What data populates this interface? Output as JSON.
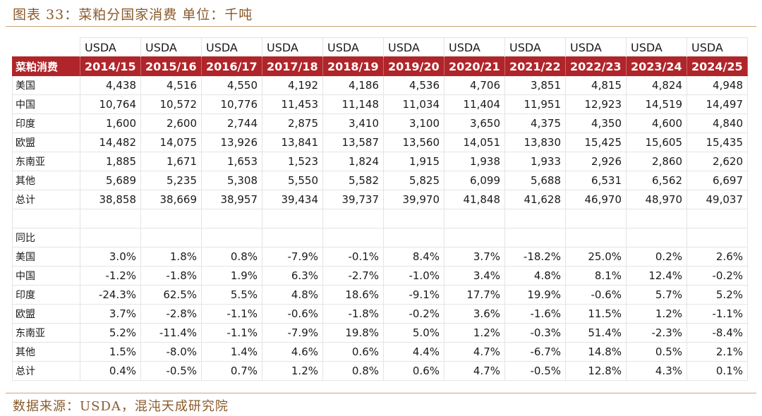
{
  "title": "图表 33：菜粕分国家消费 单位：千吨",
  "source": "数据来源：USDA，混沌天成研究院",
  "table": {
    "source_label": "USDA",
    "header_label": "菜粕消费",
    "years": [
      "2014/15",
      "2015/16",
      "2016/17",
      "2017/18",
      "2018/19",
      "2019/20",
      "2020/21",
      "2021/22",
      "2022/23",
      "2023/24",
      "2024/25"
    ],
    "consumption": [
      {
        "label": "美国",
        "values": [
          "4,438",
          "4,516",
          "4,550",
          "4,192",
          "4,186",
          "4,536",
          "4,706",
          "3,851",
          "4,815",
          "4,824",
          "4,948"
        ]
      },
      {
        "label": "中国",
        "values": [
          "10,764",
          "10,572",
          "10,776",
          "11,453",
          "11,148",
          "11,034",
          "11,404",
          "11,951",
          "12,923",
          "14,519",
          "14,497"
        ]
      },
      {
        "label": "印度",
        "values": [
          "1,600",
          "2,600",
          "2,744",
          "2,875",
          "3,410",
          "3,100",
          "3,650",
          "4,375",
          "4,350",
          "4,600",
          "4,840"
        ]
      },
      {
        "label": "欧盟",
        "values": [
          "14,482",
          "14,075",
          "13,926",
          "13,841",
          "13,587",
          "13,560",
          "14,051",
          "13,830",
          "15,425",
          "15,605",
          "15,435"
        ]
      },
      {
        "label": "东南亚",
        "values": [
          "1,885",
          "1,671",
          "1,653",
          "1,523",
          "1,824",
          "1,915",
          "1,938",
          "1,933",
          "2,926",
          "2,860",
          "2,620"
        ]
      },
      {
        "label": "其他",
        "values": [
          "5,689",
          "5,235",
          "5,308",
          "5,550",
          "5,582",
          "5,825",
          "6,099",
          "5,688",
          "6,531",
          "6,562",
          "6,697"
        ]
      },
      {
        "label": "总计",
        "values": [
          "38,858",
          "38,669",
          "38,957",
          "39,434",
          "39,737",
          "39,970",
          "41,848",
          "41,628",
          "46,970",
          "48,970",
          "49,037"
        ]
      }
    ],
    "yoy_label": "同比",
    "yoy": [
      {
        "label": "美国",
        "values": [
          "3.0%",
          "1.8%",
          "0.8%",
          "-7.9%",
          "-0.1%",
          "8.4%",
          "3.7%",
          "-18.2%",
          "25.0%",
          "0.2%",
          "2.6%"
        ]
      },
      {
        "label": "中国",
        "values": [
          "-1.2%",
          "-1.8%",
          "1.9%",
          "6.3%",
          "-2.7%",
          "-1.0%",
          "3.4%",
          "4.8%",
          "8.1%",
          "12.4%",
          "-0.2%"
        ]
      },
      {
        "label": "印度",
        "values": [
          "-24.3%",
          "62.5%",
          "5.5%",
          "4.8%",
          "18.6%",
          "-9.1%",
          "17.7%",
          "19.9%",
          "-0.6%",
          "5.7%",
          "5.2%"
        ]
      },
      {
        "label": "欧盟",
        "values": [
          "3.7%",
          "-2.8%",
          "-1.1%",
          "-0.6%",
          "-1.8%",
          "-0.2%",
          "3.6%",
          "-1.6%",
          "11.5%",
          "1.2%",
          "-1.1%"
        ]
      },
      {
        "label": "东南亚",
        "values": [
          "5.2%",
          "-11.4%",
          "-1.1%",
          "-7.9%",
          "19.8%",
          "5.0%",
          "1.2%",
          "-0.3%",
          "51.4%",
          "-2.3%",
          "-8.4%"
        ]
      },
      {
        "label": "其他",
        "values": [
          "1.5%",
          "-8.0%",
          "1.4%",
          "4.6%",
          "0.6%",
          "4.4%",
          "4.7%",
          "-6.7%",
          "14.8%",
          "0.5%",
          "2.1%"
        ]
      },
      {
        "label": "总计",
        "values": [
          "0.4%",
          "-0.5%",
          "0.7%",
          "1.2%",
          "0.8%",
          "0.6%",
          "4.7%",
          "-0.5%",
          "12.8%",
          "4.3%",
          "0.1%"
        ]
      }
    ]
  }
}
